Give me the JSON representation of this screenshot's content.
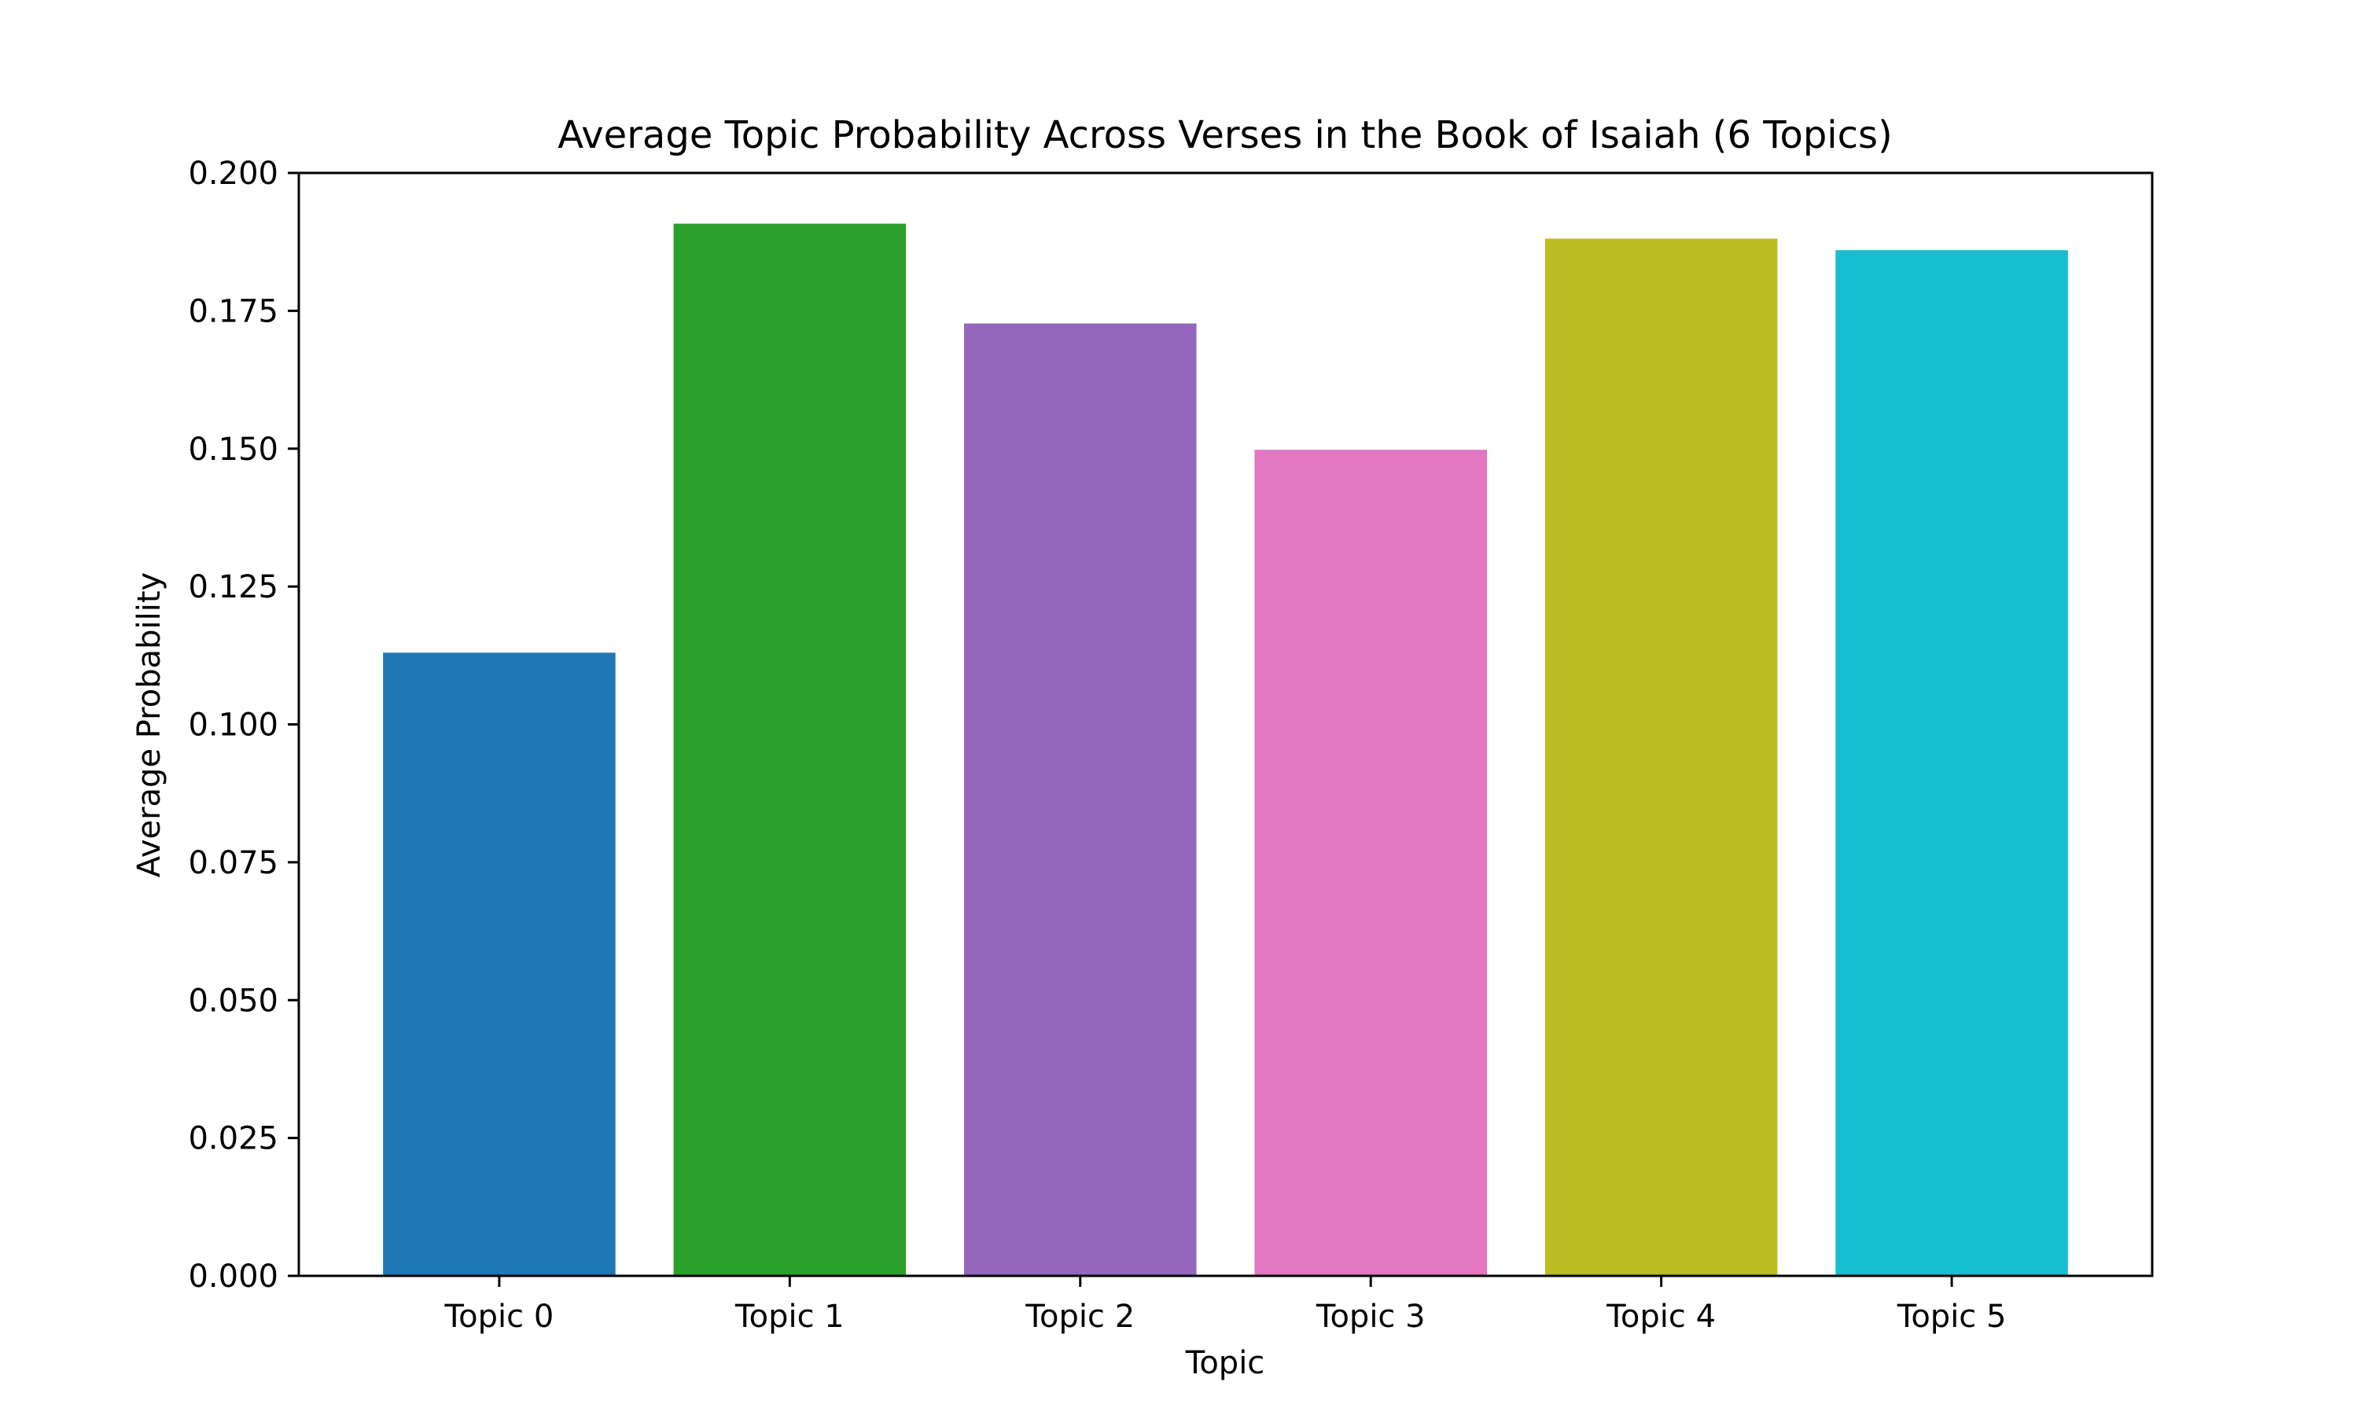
{
  "chart_data": {
    "type": "bar",
    "title": "Average Topic Probability Across Verses in the Book of Isaiah (6 Topics)",
    "xlabel": "Topic",
    "ylabel": "Average Probability",
    "categories": [
      "Topic 0",
      "Topic 1",
      "Topic 2",
      "Topic 3",
      "Topic 4",
      "Topic 5"
    ],
    "values": [
      0.113,
      0.1908,
      0.1727,
      0.1498,
      0.1881,
      0.186
    ],
    "colors": [
      "#1f77b4",
      "#2ca02c",
      "#9467bd",
      "#e377c2",
      "#bcbd22",
      "#17becf"
    ],
    "ylim": [
      0,
      0.2
    ],
    "yticks": [
      "0.000",
      "0.025",
      "0.050",
      "0.075",
      "0.100",
      "0.125",
      "0.150",
      "0.175",
      "0.200"
    ],
    "grid": false,
    "legend": "none"
  }
}
